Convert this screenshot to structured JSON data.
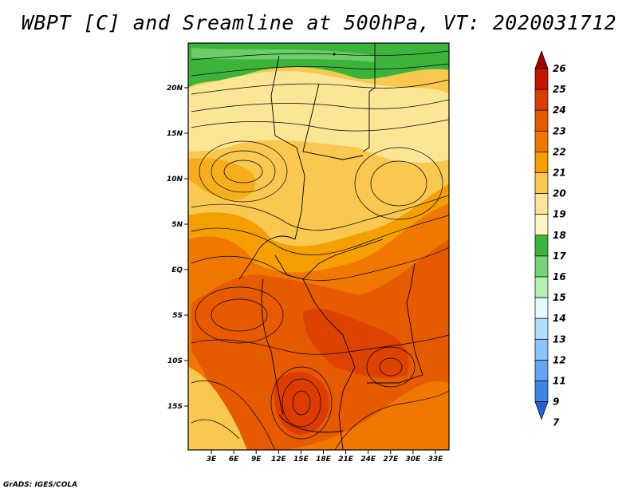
{
  "title": "WBPT [C] and Sreamline at 500hPa, VT: 2020031712",
  "credit": "GrADS: IGES/COLA",
  "map": {
    "lat_labels": [
      "20N",
      "15N",
      "10N",
      "5N",
      "EQ",
      "5S",
      "10S",
      "15S"
    ],
    "lon_labels": [
      "3E",
      "6E",
      "9E",
      "12E",
      "15E",
      "18E",
      "21E",
      "24E",
      "27E",
      "30E",
      "33E"
    ],
    "lon_range": [
      0,
      35
    ],
    "lat_range": [
      -20,
      24
    ]
  },
  "colorbar": {
    "labels": [
      "26",
      "25",
      "24",
      "23",
      "22",
      "21",
      "20",
      "19",
      "18",
      "17",
      "16",
      "15",
      "14",
      "13",
      "12",
      "11",
      "9",
      "7"
    ],
    "colors": [
      "#a00000",
      "#c81400",
      "#dc3c00",
      "#e65a00",
      "#f07800",
      "#f5a000",
      "#f8c850",
      "#fbe696",
      "#fff5c3",
      "#3cb43c",
      "#78d278",
      "#b4f0b4",
      "#e6faff",
      "#b4dcff",
      "#8cc3ff",
      "#64a5f0",
      "#3c87e6",
      "#1e64d2"
    ]
  }
}
